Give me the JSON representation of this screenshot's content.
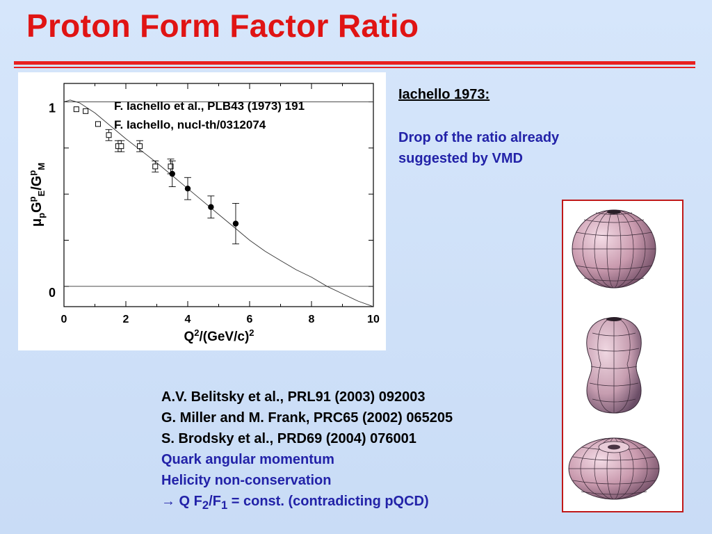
{
  "title": "Proton Form Factor Ratio",
  "colors": {
    "title": "#e01414",
    "rule": "#e82020",
    "blue_text": "#2222a8",
    "frame": "#c01818"
  },
  "chart_data": {
    "type": "scatter",
    "title": "",
    "xlabel": "Q2/(GeV/c)2",
    "ylabel": "μpGpE/GpM",
    "xlim": [
      0,
      10
    ],
    "ylim": [
      -0.11,
      1.1
    ],
    "x_ticks": [
      "0",
      "2",
      "4",
      "6",
      "8",
      "10"
    ],
    "y_ticks": [
      "0",
      "1"
    ],
    "annotations": [
      "F. Iachello et al., PLB43 (1973) 191",
      "F. Iachello, nucl-th/0312074"
    ],
    "series": [
      {
        "marker": "open-square",
        "x": [
          0.4,
          0.7,
          1.1,
          1.45,
          1.75,
          1.85,
          2.45,
          2.95,
          3.45
        ],
        "y": [
          0.96,
          0.95,
          0.88,
          0.82,
          0.76,
          0.76,
          0.76,
          0.65,
          0.65
        ],
        "err": [
          0,
          0,
          0,
          0.03,
          0.03,
          0.03,
          0.03,
          0.03,
          0.04
        ]
      },
      {
        "marker": "filled-circle",
        "x": [
          3.5,
          4.0,
          4.75,
          5.55
        ],
        "y": [
          0.61,
          0.53,
          0.43,
          0.34
        ],
        "err": [
          0.07,
          0.06,
          0.06,
          0.11
        ]
      }
    ],
    "curve": {
      "x": [
        0,
        0.2,
        0.5,
        1,
        1.5,
        2,
        2.5,
        3,
        3.5,
        4,
        4.5,
        5,
        5.5,
        6,
        6.5,
        7,
        7.5,
        8,
        8.5,
        9,
        9.5,
        10
      ],
      "y": [
        1.0,
        1.01,
        0.995,
        0.94,
        0.87,
        0.8,
        0.735,
        0.67,
        0.6,
        0.53,
        0.46,
        0.39,
        0.32,
        0.25,
        0.19,
        0.14,
        0.09,
        0.05,
        0.0,
        -0.04,
        -0.08,
        -0.11
      ]
    }
  },
  "notes": {
    "heading": "Iachello 1973:",
    "lines": [
      "Drop of the ratio already",
      "suggested by VMD"
    ]
  },
  "references": {
    "black": [
      "A.V. Belitsky et  al., PRL91 (2003) 092003",
      "G. Miller and M. Frank, PRC65 (2002) 065205",
      "S. Brodsky et al., PRD69 (2004) 076001"
    ],
    "blue": [
      "Quark angular momentum",
      "Helicity non-conservation"
    ],
    "last": {
      "arrow": "→",
      "text_a": " Q F",
      "sub_a": "2",
      "text_b": "/F",
      "sub_b": "1",
      "text_c": " = const. (contradicting pQCD)"
    }
  }
}
